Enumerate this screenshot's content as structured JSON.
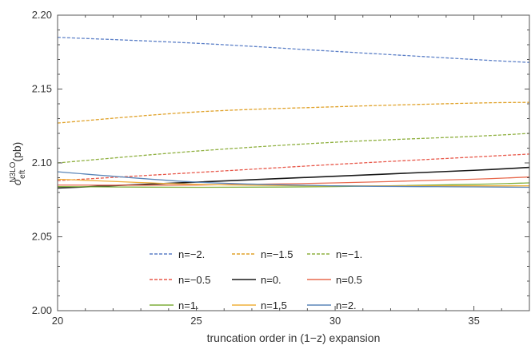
{
  "chart_data": {
    "type": "line",
    "xlabel": "truncation order in (1−z) expansion",
    "ylabel": {
      "sigma": "σ",
      "sub": "eft",
      "sup": "N3LO",
      "unit": "(pb)"
    },
    "xlim": [
      20,
      37
    ],
    "ylim": [
      2.0,
      2.2
    ],
    "xticks": [
      20,
      25,
      30,
      35
    ],
    "yticks": [
      2.0,
      2.05,
      2.1,
      2.15,
      2.2
    ],
    "xtick_labels": [
      "20",
      "25",
      "30",
      "35"
    ],
    "ytick_labels": [
      "2.00",
      "2.05",
      "2.10",
      "2.15",
      "2.20"
    ],
    "grid": false,
    "legend_position": "bottom-center",
    "series": [
      {
        "name": "n=−2.",
        "color": "#5b7fc7",
        "dash": true,
        "x": [
          20,
          25,
          30,
          35,
          37
        ],
        "y": [
          2.185,
          2.181,
          2.1755,
          2.17,
          2.168
        ]
      },
      {
        "name": "n=−1.5",
        "color": "#e0a22a",
        "dash": true,
        "x": [
          20,
          25,
          30,
          35,
          37
        ],
        "y": [
          2.127,
          2.1345,
          2.138,
          2.1405,
          2.141
        ]
      },
      {
        "name": "n=−1.",
        "color": "#8fb040",
        "dash": true,
        "x": [
          20,
          25,
          30,
          35,
          37
        ],
        "y": [
          2.1,
          2.108,
          2.114,
          2.118,
          2.12
        ]
      },
      {
        "name": "n=−0.5",
        "color": "#e8584a",
        "dash": true,
        "x": [
          20,
          25,
          30,
          35,
          37
        ],
        "y": [
          2.088,
          2.0935,
          2.099,
          2.104,
          2.106
        ]
      },
      {
        "name": "n=0.",
        "color": "#1a1a1a",
        "dash": false,
        "x": [
          20,
          25,
          30,
          35,
          37
        ],
        "y": [
          2.083,
          2.087,
          2.091,
          2.095,
          2.097
        ]
      },
      {
        "name": "n=0.5",
        "color": "#e86a4f",
        "dash": false,
        "x": [
          20,
          25,
          30,
          35,
          37
        ],
        "y": [
          2.085,
          2.085,
          2.0865,
          2.089,
          2.0905
        ]
      },
      {
        "name": "n=1.",
        "color": "#7fae3a",
        "dash": false,
        "x": [
          20,
          25,
          30,
          35,
          37
        ],
        "y": [
          2.084,
          2.0835,
          2.084,
          2.0855,
          2.0865
        ]
      },
      {
        "name": "n=1.5",
        "color": "#f0b03a",
        "dash": false,
        "x": [
          20,
          25,
          30,
          35,
          37
        ],
        "y": [
          2.089,
          2.0855,
          2.0845,
          2.0845,
          2.0845
        ]
      },
      {
        "name": "n=2.",
        "color": "#5b86b8",
        "dash": false,
        "x": [
          20,
          25,
          30,
          35,
          37
        ],
        "y": [
          2.094,
          2.087,
          2.0845,
          2.0838,
          2.0835
        ]
      }
    ]
  }
}
